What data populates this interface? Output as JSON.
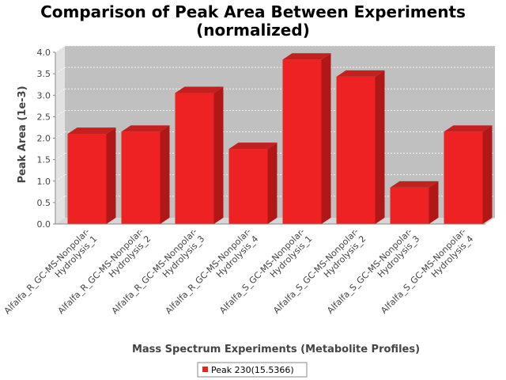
{
  "chart_data": {
    "type": "bar",
    "title_lines": [
      "Comparison of Peak Area Between Experiments",
      "(normalized)"
    ],
    "xlabel": "Mass Spectrum Experiments (Metabolite Profiles)",
    "ylabel": "Peak Area (1e-3)",
    "ylim": [
      0,
      4.0
    ],
    "y_ticks": [
      "0.0",
      "0.5",
      "1.0",
      "1.5",
      "2.0",
      "2.5",
      "3.0",
      "3.5",
      "4.0"
    ],
    "categories": [
      [
        "Alfalfa_R_GC-MS-Nonpolar-",
        "Hydrolysis_1"
      ],
      [
        "Alfalfa_R_GC-MS-Nonpolar-",
        "Hydrolysis_2"
      ],
      [
        "Alfalfa_R_GC-MS-Nonpolar-",
        "Hydrolysis_3"
      ],
      [
        "Alfalfa_R_GC-MS-Nonpolar-",
        "Hydrolysis_4"
      ],
      [
        "Alfalfa_S_GC-MS-Nonpolar-",
        "Hydrolysis_1"
      ],
      [
        "Alfalfa_S_GC-MS-Nonpolar-",
        "Hydrolysis_2"
      ],
      [
        "Alfalfa_S_GC-MS-Nonpolar-",
        "Hydrolysis_3"
      ],
      [
        "Alfalfa_S_GC-MS-Nonpolar-",
        "Hydrolysis_4"
      ]
    ],
    "series": [
      {
        "name": "Peak 230(15.5366)",
        "color": "#ee2222",
        "values": [
          2.1,
          2.15,
          3.05,
          1.75,
          3.83,
          3.43,
          0.85,
          2.15
        ]
      }
    ],
    "grid": true,
    "legend_position": "bottom"
  }
}
